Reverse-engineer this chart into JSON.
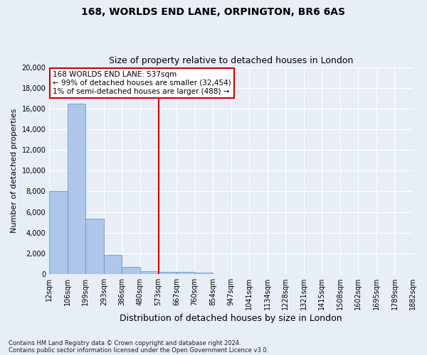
{
  "title1": "168, WORLDS END LANE, ORPINGTON, BR6 6AS",
  "title2": "Size of property relative to detached houses in London",
  "xlabel": "Distribution of detached houses by size in London",
  "ylabel": "Number of detached properties",
  "bar_values": [
    8050,
    16500,
    5350,
    1850,
    700,
    300,
    220,
    190,
    130,
    0,
    0,
    0,
    0,
    0,
    0,
    0,
    0,
    0,
    0,
    0
  ],
  "bin_labels": [
    "12sqm",
    "106sqm",
    "199sqm",
    "293sqm",
    "386sqm",
    "480sqm",
    "573sqm",
    "667sqm",
    "760sqm",
    "854sqm",
    "947sqm",
    "1041sqm",
    "1134sqm",
    "1228sqm",
    "1321sqm",
    "1415sqm",
    "1508sqm",
    "1602sqm",
    "1695sqm",
    "1789sqm",
    "1882sqm"
  ],
  "bar_color": "#aec6e8",
  "bar_edge_color": "#5b8fc7",
  "vline_x_index": 6,
  "vline_color": "#cc0000",
  "annotation_text": "168 WORLDS END LANE: 537sqm\n← 99% of detached houses are smaller (32,454)\n1% of semi-detached houses are larger (488) →",
  "annotation_box_color": "#ffffff",
  "annotation_box_edge": "#cc0000",
  "ylim": [
    0,
    20000
  ],
  "yticks": [
    0,
    2000,
    4000,
    6000,
    8000,
    10000,
    12000,
    14000,
    16000,
    18000,
    20000
  ],
  "footer1": "Contains HM Land Registry data © Crown copyright and database right 2024.",
  "footer2": "Contains public sector information licensed under the Open Government Licence v3.0.",
  "bg_color": "#e8eef5",
  "grid_color": "#ffffff"
}
